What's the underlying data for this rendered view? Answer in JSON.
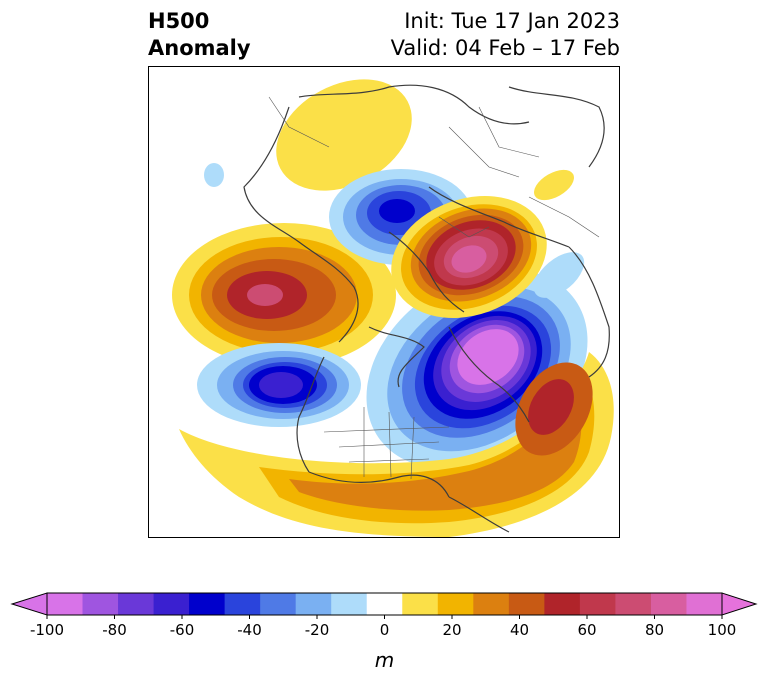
{
  "title": {
    "left_line1": "H500",
    "left_line2": "Anomaly",
    "init": "Init: Tue 17 Jan 2023",
    "valid": "Valid: 04 Feb – 17 Feb"
  },
  "colorbar": {
    "unit": "m",
    "tick_labels": [
      "-100",
      "-80",
      "-60",
      "-40",
      "-20",
      "0",
      "20",
      "40",
      "60",
      "80",
      "100"
    ],
    "levels": [
      -100,
      -90,
      -80,
      -70,
      -60,
      -50,
      -40,
      -30,
      -20,
      -10,
      10,
      20,
      30,
      40,
      50,
      60,
      70,
      80,
      90,
      100
    ],
    "colors": [
      "#d873e8",
      "#9f55e0",
      "#6a38d8",
      "#3a20d0",
      "#0000cc",
      "#2a44dc",
      "#4f7ae6",
      "#7ab0f2",
      "#aedcfa",
      "#ffffff",
      "#fbe048",
      "#f2b400",
      "#dc8010",
      "#c85a14",
      "#b0242a",
      "#c0384c",
      "#cc4c72",
      "#d85ea0",
      "#e070d4"
    ],
    "extend_low_color": "#d873e8",
    "extend_high_color": "#e672dc"
  },
  "map": {
    "projection": "polar stereographic",
    "region": "North America / North Atlantic / Arctic",
    "anomalies": [
      {
        "sign": "positive",
        "peak_m": 70,
        "location": "Bering Sea / Aleutians"
      },
      {
        "sign": "positive",
        "peak_m": 90,
        "location": "Scandinavia / Northern Europe"
      },
      {
        "sign": "positive",
        "peak_m": 20,
        "location": "Northern Siberia"
      },
      {
        "sign": "positive",
        "peak_m": 60,
        "location": "Subtropical North Atlantic"
      },
      {
        "sign": "positive",
        "peak_m": 40,
        "location": "Southern United States"
      },
      {
        "sign": "negative",
        "peak_m": -100,
        "location": "Greenland / Baffin Bay"
      },
      {
        "sign": "negative",
        "peak_m": -60,
        "location": "Barents / Kara Sea"
      },
      {
        "sign": "negative",
        "peak_m": -70,
        "location": "Northeast Pacific"
      }
    ]
  }
}
